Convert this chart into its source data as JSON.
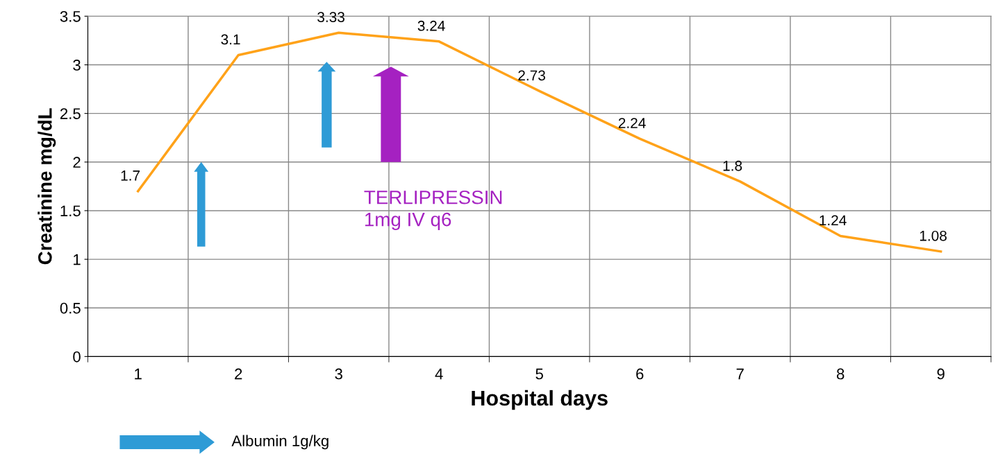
{
  "chart_data": {
    "type": "line",
    "xlabel": "Hospital days",
    "ylabel": "Creatinine mg/dL",
    "categories": [
      "1",
      "2",
      "3",
      "4",
      "5",
      "6",
      "7",
      "8",
      "9"
    ],
    "series": [
      {
        "color": "#ffa219",
        "values": [
          1.7,
          3.1,
          3.33,
          3.24,
          2.73,
          2.24,
          1.8,
          1.24,
          1.08
        ]
      }
    ],
    "data_labels": true,
    "ylim": [
      0,
      3.5
    ],
    "yticks": [
      0,
      0.5,
      1,
      1.5,
      2,
      2.5,
      3,
      3.5
    ],
    "grid": true,
    "legend": false,
    "marker": "none",
    "line_style": "solid",
    "annotations": [
      "TERLIPRESSIN\n1mg IV q6",
      "Albumin 1g/kg"
    ]
  }
}
